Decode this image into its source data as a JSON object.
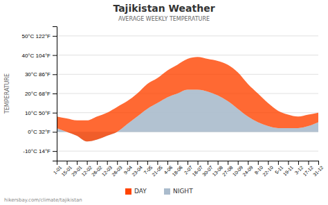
{
  "chart_data": {
    "type": "area",
    "title": "Tajikistan Weather",
    "subtitle": "AVERAGE WEEKLY TEMPERATURE",
    "y_label": "TEMPERATURE",
    "annotations": [
      "hikersbay.com/climate/tajikistan"
    ],
    "categories": [
      "1-01",
      "15-01",
      "29-01",
      "12-02",
      "26-02",
      "12-03",
      "26-03",
      "9-04",
      "23-04",
      "7-05",
      "21-05",
      "4-06",
      "18-06",
      "2-07",
      "16-07",
      "30-07",
      "13-08",
      "27-08",
      "10-09",
      "24-09",
      "8-10",
      "22-10",
      "5-11",
      "19-11",
      "3-12",
      "17-12",
      "31-12"
    ],
    "series": [
      {
        "name": "DAY",
        "color": "#ff4400",
        "values": [
          8,
          7,
          6,
          6,
          8,
          10,
          13,
          16,
          20,
          25,
          28,
          32,
          35,
          38,
          39,
          38,
          37,
          35,
          31,
          25,
          20,
          15,
          11,
          9,
          8,
          9,
          10
        ]
      },
      {
        "name": "NIGHT",
        "color": "#aabbcc",
        "values": [
          2,
          0,
          -2,
          -5,
          -4,
          -2,
          0,
          4,
          8,
          12,
          15,
          18,
          20,
          22,
          22,
          21,
          19,
          16,
          12,
          8,
          5,
          3,
          2,
          2,
          2,
          3,
          5
        ]
      }
    ],
    "ylim": [
      -15,
      55
    ],
    "yticks": [
      {
        "value": -10,
        "label": "-10°C 14°F"
      },
      {
        "value": 0,
        "label": "0°C 32°F"
      },
      {
        "value": 10,
        "label": "10°C 50°F"
      },
      {
        "value": 20,
        "label": "20°C 68°F"
      },
      {
        "value": 30,
        "label": "30°C 86°F"
      },
      {
        "value": 40,
        "label": "40°C 104°F"
      },
      {
        "value": 50,
        "label": "50°C 122°F"
      }
    ],
    "grid": true,
    "legend": "bottom"
  }
}
